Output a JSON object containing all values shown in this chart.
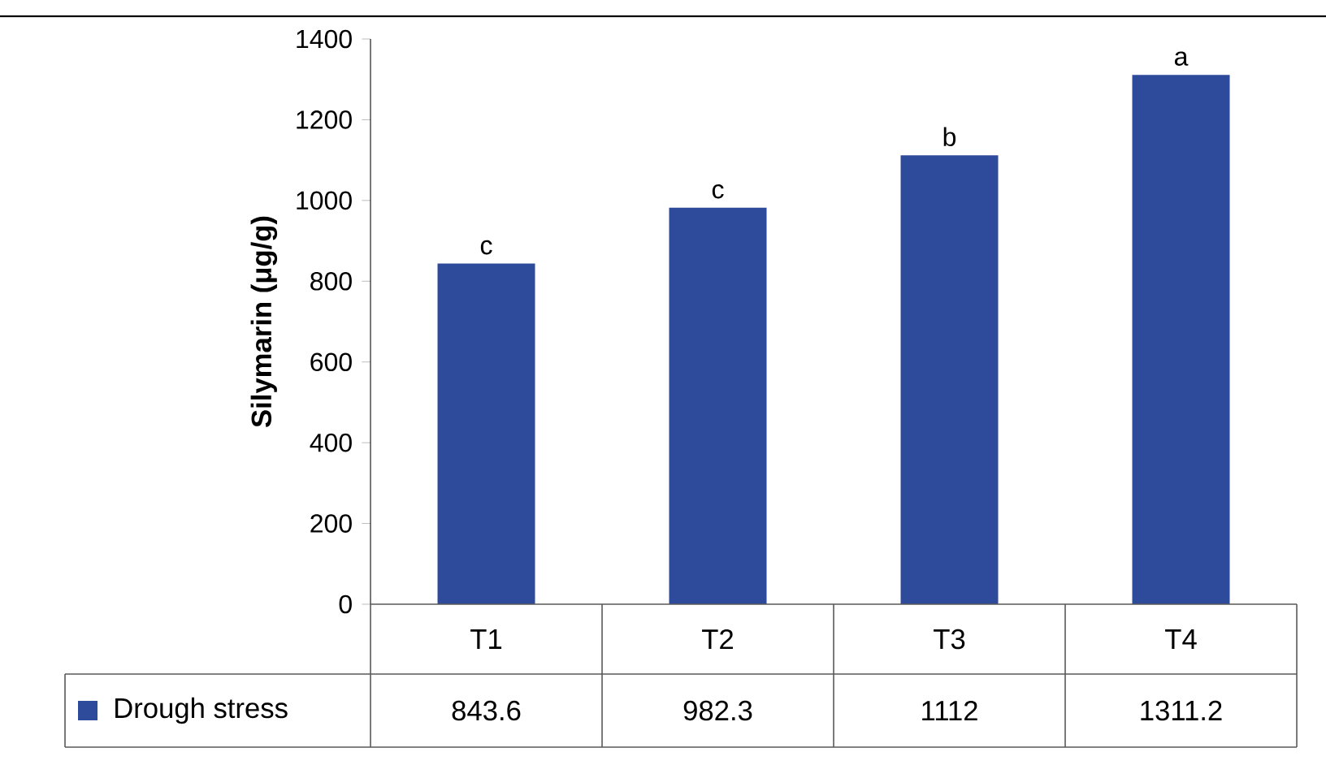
{
  "chart_data": {
    "type": "bar",
    "ylabel": "Silymarin (μg/g)",
    "categories": [
      "T1",
      "T2",
      "T3",
      "T4"
    ],
    "series": [
      {
        "name": "Drough stress",
        "color": "#2e4a9b",
        "values": [
          843.6,
          982.3,
          1112,
          1311.2
        ]
      }
    ],
    "ylim": [
      0,
      1400
    ],
    "yticks": [
      0,
      200,
      400,
      600,
      800,
      1000,
      1200,
      1400
    ],
    "data_labels": true,
    "legend": "bottom",
    "annotations": [
      {
        "text": "c",
        "x": "T1",
        "y": 843.6
      },
      {
        "text": "c",
        "x": "T2",
        "y": 982.3
      },
      {
        "text": "b",
        "x": "T3",
        "y": 1112
      },
      {
        "text": "a",
        "x": "T4",
        "y": 1311.2
      }
    ]
  }
}
